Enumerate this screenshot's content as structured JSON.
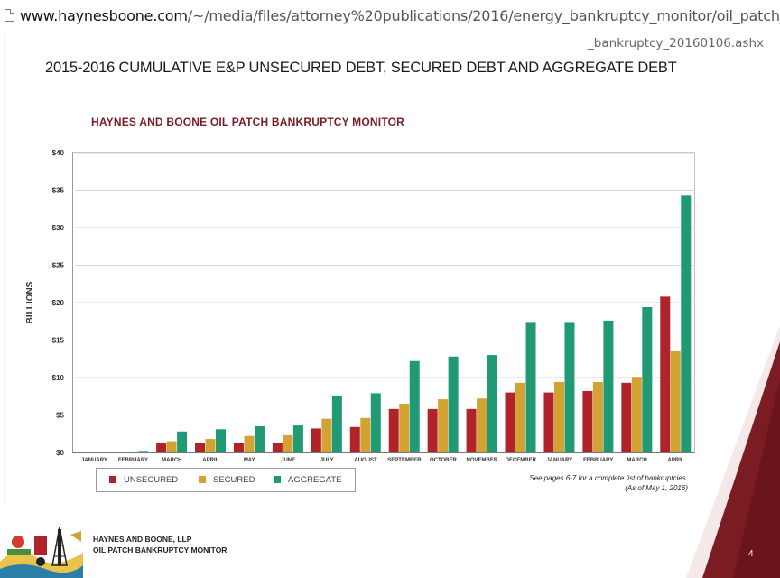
{
  "browser": {
    "url_host": "www.haynesboone.com",
    "url_path": "/~/media/files/attorney%20publications/2016/energy_bankruptcy_monitor/oil_patch_",
    "url_continued": "_bankruptcy_20160106.ashx"
  },
  "slide": {
    "title": "2015-2016 CUMULATIVE E&P UNSECURED DEBT, SECURED DEBT AND AGGREGATE DEBT",
    "footer_line1": "HAYNES AND BOONE, LLP",
    "footer_line2": "OIL PATCH BANKRUPTCY MONITOR",
    "page_number": "4",
    "note_line1": "See pages 6-7 for a complete list of bankruptcies.",
    "note_line2": "(As of May 1, 2016)"
  },
  "chart_data": {
    "type": "bar",
    "title": "HAYNES AND BOONE OIL PATCH BANKRUPTCY MONITOR",
    "xlabel": "",
    "ylabel": "BILLIONS",
    "ylim": [
      0,
      40
    ],
    "yticks": [
      0,
      5,
      10,
      15,
      20,
      25,
      30,
      35,
      40
    ],
    "ytick_labels": [
      "$0",
      "$5",
      "$10",
      "$15",
      "$20",
      "$25",
      "$30",
      "$35",
      "$40"
    ],
    "grid": true,
    "legend_position": "bottom-left",
    "categories": [
      "JANUARY",
      "FEBRUARY",
      "MARCH",
      "APRIL",
      "MAY",
      "JUNE",
      "JULY",
      "AUGUST",
      "SEPTEMBER",
      "OCTOBER",
      "NOVEMBER",
      "DECEMBER",
      "JANUARY",
      "FEBRUARY",
      "MARCH",
      "APRIL"
    ],
    "series": [
      {
        "name": "UNSECURED",
        "color": "#b1232b",
        "values": [
          0.05,
          0.1,
          1.3,
          1.3,
          1.3,
          1.3,
          3.2,
          3.4,
          5.8,
          5.8,
          5.8,
          8.0,
          8.0,
          8.2,
          9.3,
          20.8
        ]
      },
      {
        "name": "SECURED",
        "color": "#d4a233",
        "values": [
          0.05,
          0.1,
          1.5,
          1.8,
          2.2,
          2.3,
          4.5,
          4.6,
          6.5,
          7.1,
          7.2,
          9.3,
          9.4,
          9.4,
          10.1,
          13.5
        ]
      },
      {
        "name": "AGGREGATE",
        "color": "#1f9a75",
        "values": [
          0.1,
          0.2,
          2.8,
          3.1,
          3.5,
          3.6,
          7.6,
          7.9,
          12.2,
          12.8,
          13.0,
          17.3,
          17.3,
          17.6,
          19.4,
          34.3
        ]
      }
    ]
  }
}
